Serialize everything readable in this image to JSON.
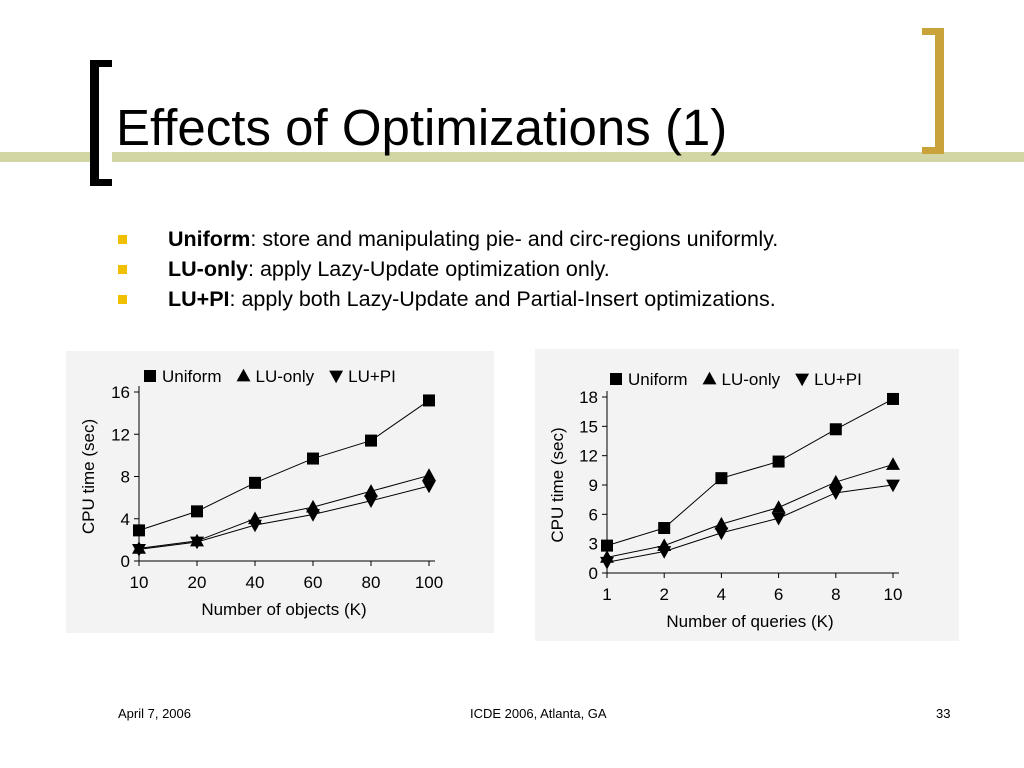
{
  "slide": {
    "title": "Effects of Optimizations (1)",
    "bullets": [
      {
        "term": "Uniform",
        "text": ": store and manipulating pie- and circ-regions uniformly."
      },
      {
        "term": "LU-only",
        "text": ": apply Lazy-Update optimization only."
      },
      {
        "term": "LU+PI",
        "text": ": apply both Lazy-Update and Partial-Insert optimizations."
      }
    ],
    "footer": {
      "date": "April 7, 2006",
      "venue": "ICDE 2006, Atlanta, GA",
      "page": "33"
    }
  },
  "colors": {
    "accent_line": "#d2d6a4",
    "bracket_right": "#c9a23a",
    "bullet": "#f0c000",
    "chart_bg": "#f3f3f3"
  },
  "chart_data": [
    {
      "type": "line",
      "categories": [
        "10",
        "20",
        "40",
        "60",
        "80",
        "100"
      ],
      "xlabel": "Number of objects (K)",
      "ylabel": "CPU time (sec)",
      "ylim": [
        0,
        16
      ],
      "yticks": [
        0,
        4,
        8,
        12,
        16
      ],
      "legend_position": "top",
      "series": [
        {
          "name": "Uniform",
          "marker": "square",
          "values": [
            2.9,
            4.7,
            7.4,
            9.7,
            11.4,
            15.2
          ]
        },
        {
          "name": "LU-only",
          "marker": "triangle-up",
          "values": [
            1.2,
            1.9,
            4.0,
            5.1,
            6.6,
            8.1
          ]
        },
        {
          "name": "LU+PI",
          "marker": "triangle-down",
          "values": [
            1.1,
            1.8,
            3.4,
            4.4,
            5.7,
            7.1
          ]
        }
      ]
    },
    {
      "type": "line",
      "categories": [
        "1",
        "2",
        "4",
        "6",
        "8",
        "10"
      ],
      "xlabel": "Number of queries (K)",
      "ylabel": "CPU time (sec)",
      "ylim": [
        0,
        18
      ],
      "yticks": [
        0,
        3,
        6,
        9,
        12,
        15,
        18
      ],
      "legend_position": "top",
      "series": [
        {
          "name": "Uniform",
          "marker": "square",
          "values": [
            2.8,
            4.6,
            9.7,
            11.4,
            14.7,
            17.8
          ]
        },
        {
          "name": "LU-only",
          "marker": "triangle-up",
          "values": [
            1.6,
            2.8,
            5.0,
            6.7,
            9.3,
            11.1
          ]
        },
        {
          "name": "LU+PI",
          "marker": "triangle-down",
          "values": [
            1.1,
            2.2,
            4.1,
            5.6,
            8.2,
            9.0
          ]
        }
      ]
    }
  ]
}
